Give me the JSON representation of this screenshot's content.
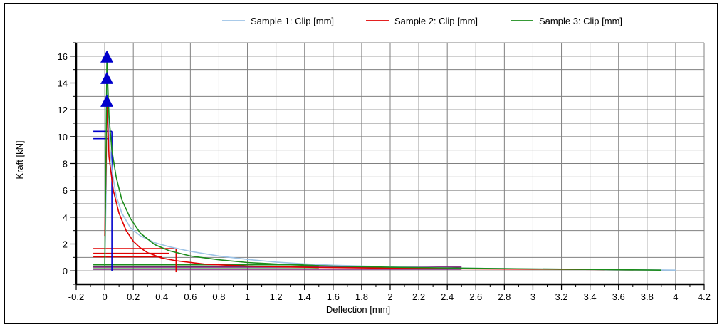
{
  "chart_data": {
    "type": "line",
    "xlabel": "Deflection [mm]",
    "ylabel": "Kraft [kN]",
    "xlim": [
      -0.2,
      4.2
    ],
    "ylim": [
      -1,
      17
    ],
    "grid": true,
    "legend_position": "top",
    "x_ticks": [
      "-0.2",
      "0",
      "0.2",
      "0.4",
      "0.6",
      "0.8",
      "1",
      "1.2",
      "1.4",
      "1.6",
      "1.8",
      "2",
      "2.2",
      "2.4",
      "2.6",
      "2.8",
      "3",
      "3.2",
      "3.4",
      "3.6",
      "3.8",
      "4",
      "4.2"
    ],
    "y_ticks": [
      "0",
      "2",
      "4",
      "6",
      "8",
      "10",
      "12",
      "14",
      "16"
    ],
    "series": [
      {
        "name": "Sample 1: Clip [mm]",
        "color": "#9dc3e6",
        "points": [
          [
            0.0,
            0.3
          ],
          [
            0.01,
            6
          ],
          [
            0.015,
            14.0
          ],
          [
            0.03,
            10.2
          ],
          [
            0.05,
            7.5
          ],
          [
            0.08,
            5.6
          ],
          [
            0.12,
            4.3
          ],
          [
            0.18,
            3.2
          ],
          [
            0.25,
            2.6
          ],
          [
            0.35,
            2.1
          ],
          [
            0.45,
            1.8
          ],
          [
            0.6,
            1.45
          ],
          [
            0.8,
            1.1
          ],
          [
            1.0,
            0.85
          ],
          [
            1.2,
            0.65
          ],
          [
            1.4,
            0.52
          ],
          [
            1.6,
            0.42
          ],
          [
            2.0,
            0.3
          ],
          [
            2.5,
            0.2
          ],
          [
            3.0,
            0.14
          ],
          [
            3.5,
            0.1
          ],
          [
            4.0,
            0.05
          ]
        ]
      },
      {
        "name": "Sample 2: Clip [mm]",
        "color": "#e00000",
        "points": [
          [
            0.0,
            2.6
          ],
          [
            0.01,
            8
          ],
          [
            0.015,
            12.8
          ],
          [
            0.03,
            8.5
          ],
          [
            0.06,
            6.0
          ],
          [
            0.1,
            4.3
          ],
          [
            0.15,
            3.0
          ],
          [
            0.2,
            2.2
          ],
          [
            0.25,
            1.7
          ],
          [
            0.3,
            1.35
          ],
          [
            0.4,
            0.95
          ],
          [
            0.5,
            0.75
          ],
          [
            0.7,
            0.5
          ],
          [
            1.0,
            0.35
          ],
          [
            1.5,
            0.25
          ],
          [
            2.0,
            0.2
          ],
          [
            2.5,
            0.15
          ],
          [
            3.0,
            0.12
          ],
          [
            3.5,
            0.1
          ]
        ]
      },
      {
        "name": "Sample 3: Clip [mm]",
        "color": "#1a8c1a",
        "points": [
          [
            0.0,
            0.3
          ],
          [
            0.01,
            10
          ],
          [
            0.015,
            15.6
          ],
          [
            0.03,
            11.5
          ],
          [
            0.05,
            9.0
          ],
          [
            0.08,
            7.0
          ],
          [
            0.12,
            5.3
          ],
          [
            0.18,
            3.9
          ],
          [
            0.25,
            2.8
          ],
          [
            0.35,
            1.95
          ],
          [
            0.45,
            1.5
          ],
          [
            0.6,
            1.1
          ],
          [
            0.8,
            0.82
          ],
          [
            1.0,
            0.62
          ],
          [
            1.3,
            0.45
          ],
          [
            1.6,
            0.35
          ],
          [
            2.0,
            0.27
          ],
          [
            2.5,
            0.2
          ],
          [
            3.0,
            0.14
          ],
          [
            3.5,
            0.1
          ],
          [
            3.9,
            0.05
          ]
        ]
      }
    ],
    "markers": [
      {
        "shape": "triangle",
        "color": "#0000cc",
        "x": 0.015,
        "y": 12.6
      },
      {
        "shape": "triangle",
        "color": "#0000cc",
        "x": 0.015,
        "y": 14.3
      },
      {
        "shape": "triangle",
        "color": "#0000cc",
        "x": 0.015,
        "y": 15.9
      }
    ],
    "flags": [
      {
        "color": "#e00000",
        "y": 1.65,
        "x0": -0.08,
        "x1": 0.5
      },
      {
        "color": "#e00000",
        "y": 1.3,
        "x0": -0.08,
        "x1": 0.45
      },
      {
        "color": "#e00000",
        "y": 1.05,
        "x0": -0.08,
        "x1": 0.4
      },
      {
        "color": "#1a8c1a",
        "y": 0.45,
        "x0": -0.08,
        "x1": 1.5
      },
      {
        "color": "#1a8c1a",
        "y": 0.3,
        "x0": -0.08,
        "x1": 1.5
      },
      {
        "color": "#1a8c1a",
        "y": 0.15,
        "x0": -0.08,
        "x1": 1.5
      },
      {
        "color": "#7a1f7a",
        "y": 0.28,
        "x0": -0.08,
        "x1": 2.5
      },
      {
        "color": "#7a1f7a",
        "y": 0.12,
        "x0": -0.08,
        "x1": 2.5
      },
      {
        "color": "#0000cc",
        "y": 10.4,
        "x0": -0.08,
        "x1": 0.05
      },
      {
        "color": "#0000cc",
        "y": 9.85,
        "x0": -0.08,
        "x1": 0.05
      }
    ],
    "vlines": [
      {
        "color": "#0000cc",
        "x": 0.05,
        "y0": 0.0,
        "y1": 10.4
      },
      {
        "color": "#e00000",
        "x": 0.5,
        "y0": -0.1,
        "y1": 1.65
      }
    ]
  }
}
